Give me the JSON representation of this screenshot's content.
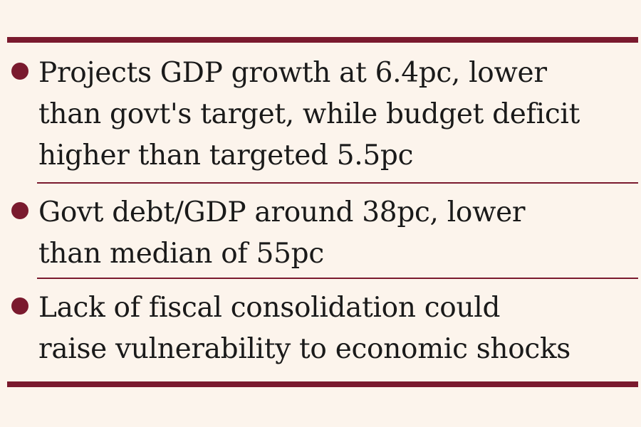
{
  "colors": {
    "background": "#fcf4ec",
    "accent": "#7a1a2e",
    "text": "#1a1a1a"
  },
  "items": [
    {
      "lines": [
        "Projects GDP growth at 6.4pc, lower",
        "than govt's target, while budget deficit",
        "higher than targeted 5.5pc"
      ]
    },
    {
      "lines": [
        "Govt debt/GDP around 38pc, lower",
        "than median of 55pc"
      ]
    },
    {
      "lines": [
        "Lack of fiscal consolidation could",
        "raise vulnerability to economic shocks"
      ]
    }
  ]
}
